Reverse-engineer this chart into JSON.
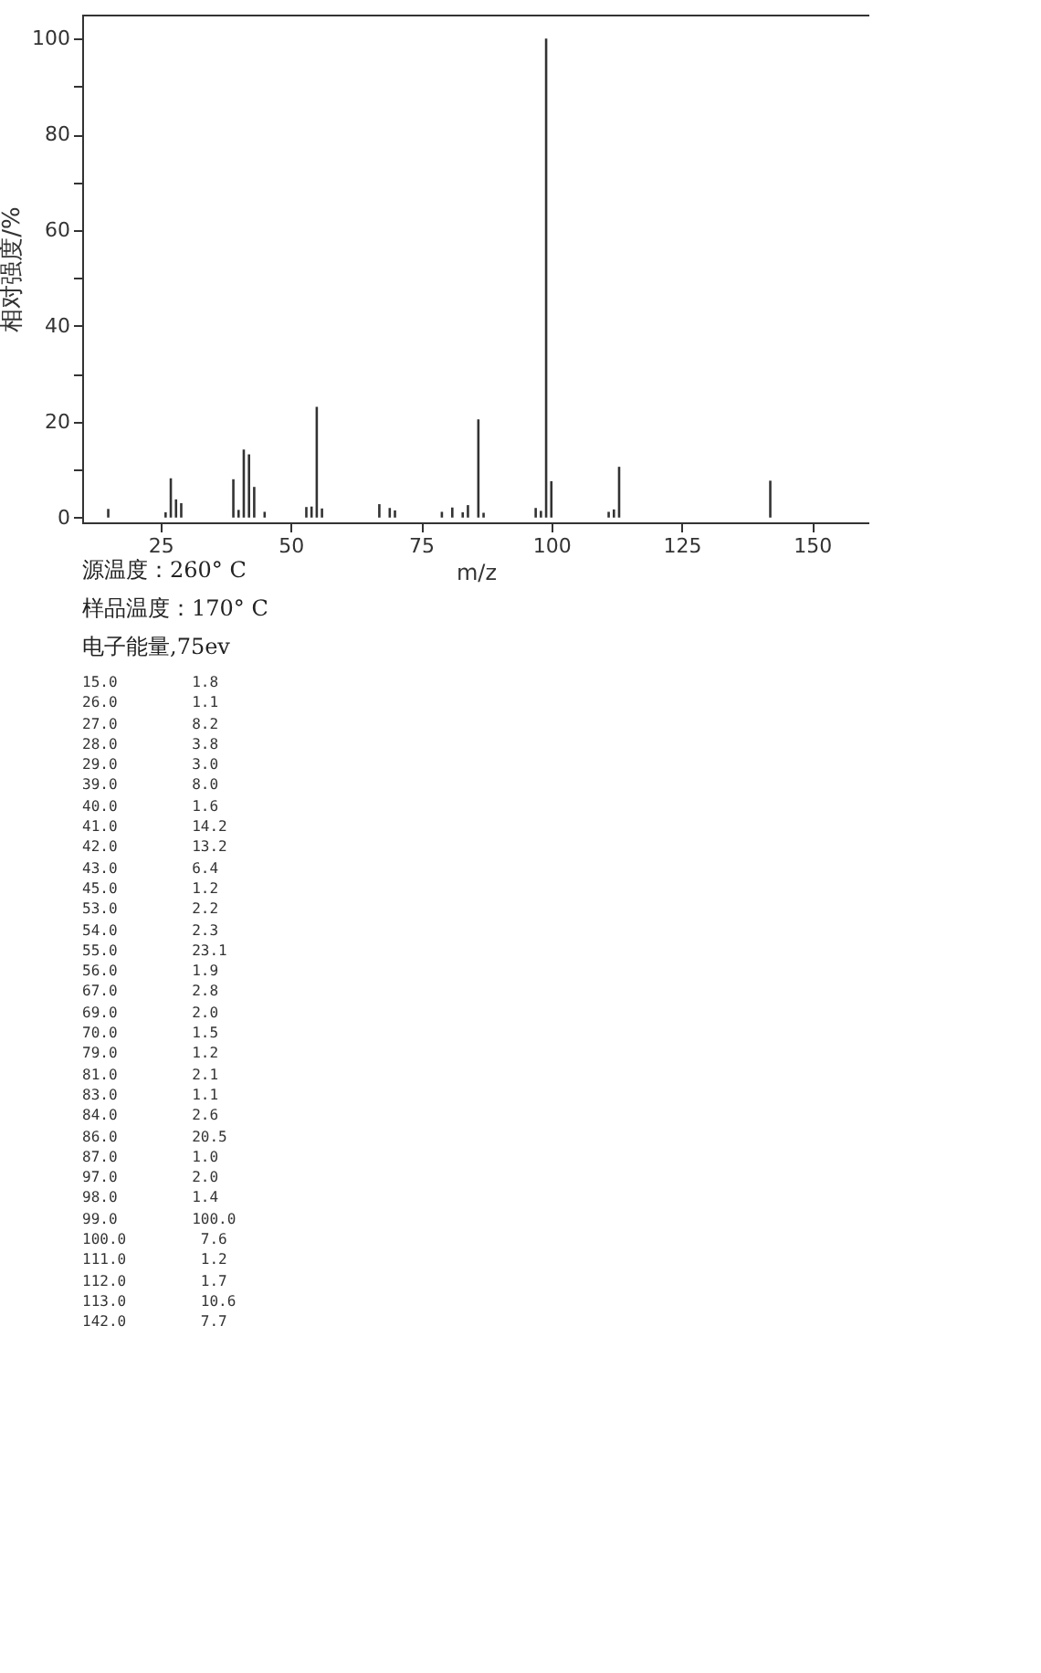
{
  "chart_data": [
    {
      "type": "bar",
      "xlabel": "m/z",
      "ylabel": "相对强度/%",
      "x": [
        15,
        26,
        27,
        28,
        29,
        39,
        40,
        41,
        42,
        43,
        45,
        53,
        54,
        55,
        56,
        67,
        69,
        70,
        79,
        81,
        83,
        84,
        86,
        87,
        97,
        98,
        99,
        100,
        111,
        112,
        113,
        142
      ],
      "values": [
        1.8,
        1.1,
        8.2,
        3.8,
        3.0,
        8.0,
        1.6,
        14.2,
        13.2,
        6.4,
        1.2,
        2.2,
        2.3,
        23.1,
        1.9,
        2.8,
        2.0,
        1.5,
        1.2,
        2.1,
        1.1,
        2.6,
        20.5,
        1.0,
        2.0,
        1.4,
        100.0,
        7.6,
        1.2,
        1.7,
        10.6,
        7.7
      ],
      "color": "#333333",
      "xlim": [
        10,
        161
      ],
      "xticks": [
        25,
        50,
        75,
        100,
        125,
        150
      ],
      "ylim": [
        -1,
        105
      ],
      "yticks": [
        0,
        {
          "value": 10,
          "label": null
        },
        20,
        {
          "value": 30,
          "label": null
        },
        40,
        {
          "value": 50,
          "label": null
        },
        60,
        {
          "value": 70,
          "label": null
        },
        80,
        {
          "value": 90,
          "label": null
        },
        100
      ],
      "grid": false,
      "annotations": [
        "源温度：260° C",
        "样品温度：170° C",
        "电子能量,75ev"
      ]
    },
    {
      "type": "other",
      "annotations": [
        "15.0 1.8",
        "26.0 1.1",
        "27.0 8.2",
        "28.0 3.8",
        "29.0 3.0",
        "39.0 8.0",
        "40.0 1.6",
        "41.0 14.2",
        "42.0 13.2",
        "43.0 6.4",
        "45.0 1.2",
        "53.0 2.2",
        "54.0 2.3",
        "55.0 23.1",
        "56.0 1.9",
        "67.0 2.8",
        "69.0 2.0",
        "70.0 1.5",
        "79.0 1.2",
        "81.0 2.1",
        "83.0 1.1",
        "84.0 2.6",
        "86.0 20.5",
        "87.0 1.0",
        "97.0 2.0",
        "98.0 1.4",
        "99.0 100.0",
        "100.0 7.6",
        "111.0 1.2",
        "112.0 1.7",
        "113.0 10.6",
        "142.0 7.7"
      ]
    }
  ]
}
